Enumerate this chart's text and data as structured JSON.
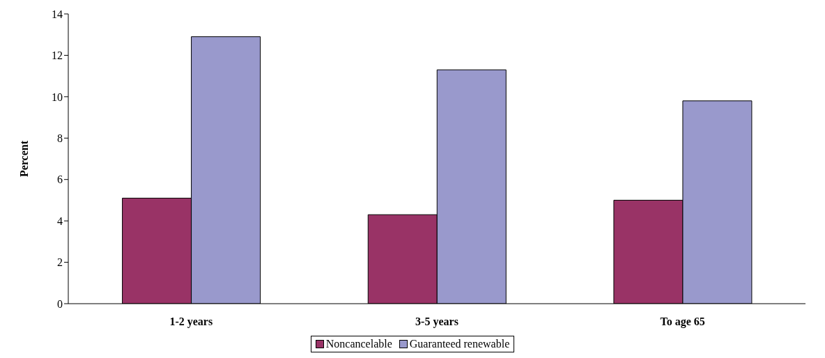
{
  "chart_data": {
    "type": "bar",
    "ylabel": "Percent",
    "categories": [
      "1-2 years",
      "3-5 years",
      "To age 65"
    ],
    "series": [
      {
        "name": "Noncancelable",
        "color": "#993366",
        "values": [
          5.1,
          4.3,
          5.0
        ]
      },
      {
        "name": "Guaranteed renewable",
        "color": "#9999cc",
        "values": [
          12.9,
          11.3,
          9.8
        ]
      }
    ],
    "ylim": [
      0,
      14
    ],
    "yticks": [
      0,
      2,
      4,
      6,
      8,
      10,
      12,
      14
    ],
    "grid": false,
    "legend": "bottom"
  }
}
